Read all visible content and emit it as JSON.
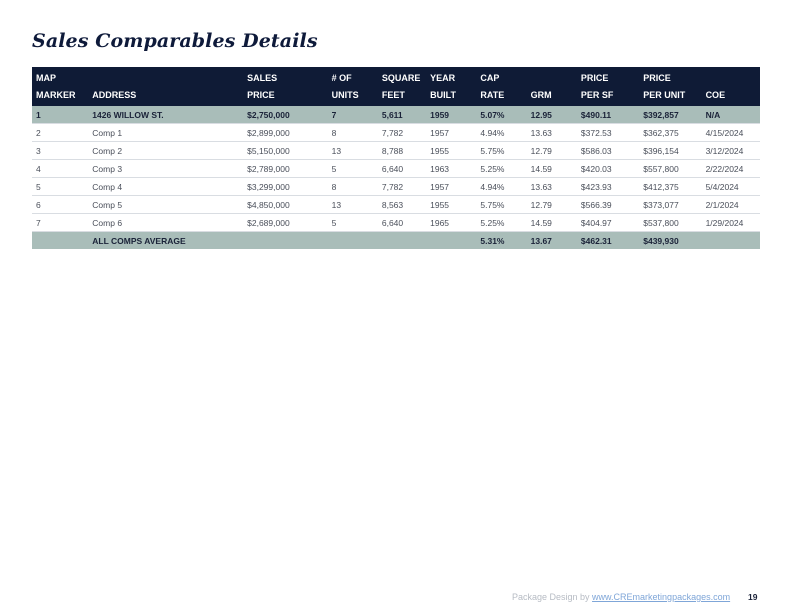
{
  "title": "Sales Comparables Details",
  "table": {
    "headers": [
      [
        "MAP",
        "MARKER"
      ],
      [
        "",
        "ADDRESS"
      ],
      [
        "SALES",
        "PRICE"
      ],
      [
        "# OF",
        "UNITS"
      ],
      [
        "SQUARE",
        "FEET"
      ],
      [
        "YEAR",
        "BUILT"
      ],
      [
        "CAP",
        "RATE"
      ],
      [
        "",
        "GRM"
      ],
      [
        "PRICE",
        "PER SF"
      ],
      [
        "PRICE",
        "PER UNIT"
      ],
      [
        "",
        "COE"
      ]
    ],
    "rows": [
      [
        "1",
        "1426 WILLOW ST.",
        "$2,750,000",
        "7",
        "5,611",
        "1959",
        "5.07%",
        "12.95",
        "$490.11",
        "$392,857",
        "N/A"
      ],
      [
        "2",
        "Comp 1",
        "$2,899,000",
        "8",
        "7,782",
        "1957",
        "4.94%",
        "13.63",
        "$372.53",
        "$362,375",
        "4/15/2024"
      ],
      [
        "3",
        "Comp 2",
        "$5,150,000",
        "13",
        "8,788",
        "1955",
        "5.75%",
        "12.79",
        "$586.03",
        "$396,154",
        "3/12/2024"
      ],
      [
        "4",
        "Comp 3",
        "$2,789,000",
        "5",
        "6,640",
        "1963",
        "5.25%",
        "14.59",
        "$420.03",
        "$557,800",
        "2/22/2024"
      ],
      [
        "5",
        "Comp 4",
        "$3,299,000",
        "8",
        "7,782",
        "1957",
        "4.94%",
        "13.63",
        "$423.93",
        "$412,375",
        "5/4/2024"
      ],
      [
        "6",
        "Comp 5",
        "$4,850,000",
        "13",
        "8,563",
        "1955",
        "5.75%",
        "12.79",
        "$566.39",
        "$373,077",
        "2/1/2024"
      ],
      [
        "7",
        "Comp 6",
        "$2,689,000",
        "5",
        "6,640",
        "1965",
        "5.25%",
        "14.59",
        "$404.97",
        "$537,800",
        "1/29/2024"
      ]
    ],
    "average": [
      "",
      "ALL COMPS AVERAGE",
      "",
      "",
      "",
      "",
      "5.31%",
      "13.67",
      "$462.31",
      "$439,930",
      ""
    ]
  },
  "footer": {
    "credit_prefix": "Package Design by ",
    "credit_link": "www.CREmarketingpackages.com",
    "page_number": "19"
  },
  "colors": {
    "header_bg": "#0f1b36",
    "highlight_row": "#a9bdb9",
    "title": "#0e1a3a"
  }
}
